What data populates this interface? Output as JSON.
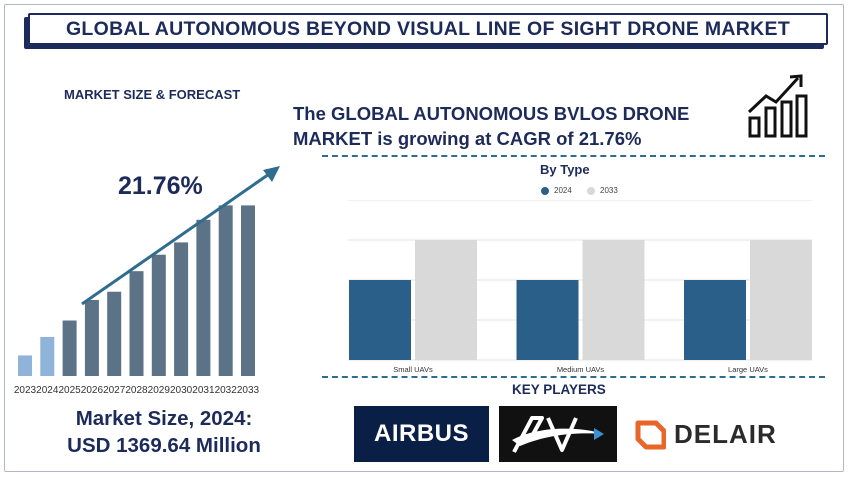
{
  "header": {
    "title": "GLOBAL AUTONOMOUS BEYOND VISUAL LINE OF SIGHT DRONE MARKET"
  },
  "left_panel": {
    "section_label": "MARKET SIZE & FORECAST",
    "cagr_label": "21.76%",
    "market_size_line1": "Market Size, 2024:",
    "market_size_line2": "USD 1369.64 Million"
  },
  "headline": {
    "line1": "The GLOBAL AUTONOMOUS BVLOS DRONE",
    "line2": "MARKET is growing at CAGR of 21.76%"
  },
  "colors": {
    "navy": "#1d2b5a",
    "bar_light": "#8fb3d9",
    "bar_dark": "#5c7387",
    "series_2024": "#2a5f8a",
    "series_2033": "#d9d9d9",
    "arrow": "#2f6d8f"
  },
  "icons": {
    "growth": "bar-growth-icon"
  },
  "chart_data": [
    {
      "type": "bar",
      "title": "",
      "categories": [
        "2023",
        "2024",
        "2025",
        "2026",
        "2027",
        "2028",
        "2029",
        "2030",
        "2031",
        "2032",
        "2033"
      ],
      "values": [
        1.0,
        1.9,
        2.7,
        3.7,
        4.1,
        5.1,
        5.9,
        6.5,
        7.6,
        8.3,
        8.3
      ],
      "ylim": [
        0,
        9
      ],
      "highlighted_years": [
        "2023",
        "2024"
      ],
      "xlabel": "",
      "ylabel": "",
      "annotation": "21.76%"
    },
    {
      "type": "bar",
      "title": "By Type",
      "categories": [
        "Small UAVs",
        "Medium UAVs",
        "Large UAVs"
      ],
      "series": [
        {
          "name": "2024",
          "values": [
            40,
            40,
            40
          ]
        },
        {
          "name": "2033",
          "values": [
            60,
            60,
            60
          ]
        }
      ],
      "ylim": [
        0,
        80
      ],
      "grid": true,
      "legend_position": "top"
    }
  ],
  "key_players": {
    "title": "KEY PLAYERS",
    "players": [
      "AIRBUS",
      "AV",
      "DELAIR"
    ]
  }
}
